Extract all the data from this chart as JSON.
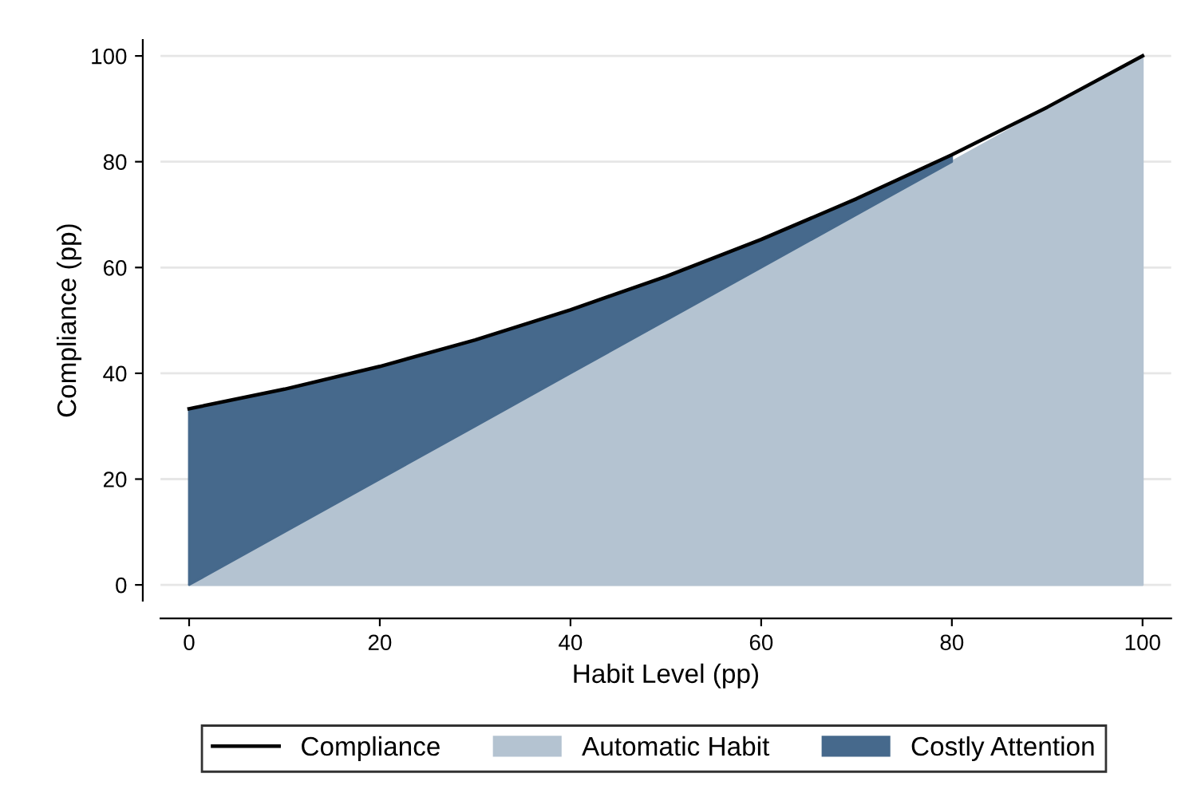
{
  "chart_data": {
    "type": "area",
    "stacked": true,
    "xlabel": "Habit Level (pp)",
    "ylabel": "Compliance (pp)",
    "x": [
      0,
      10,
      20,
      30,
      40,
      50,
      60,
      70,
      80,
      90,
      100
    ],
    "series": [
      {
        "name": "Automatic Habit",
        "color": "#b4c3d1",
        "values": [
          0,
          10,
          20,
          30,
          40,
          50,
          60,
          70,
          80,
          90,
          100
        ]
      },
      {
        "name": "Costly Attention",
        "color": "#46698c",
        "values": [
          33.3,
          27.0,
          21.3,
          16.3,
          12.0,
          8.3,
          5.3,
          3.0,
          1.3,
          null,
          null
        ]
      },
      {
        "name": "Compliance",
        "type": "line",
        "color": "#000000",
        "values": [
          33.3,
          37.0,
          41.3,
          46.3,
          52.0,
          58.3,
          65.3,
          73.0,
          81.3,
          90.3,
          100
        ]
      }
    ],
    "xlim": [
      -3,
      103
    ],
    "ylim": [
      -3,
      103
    ],
    "xticks": [
      0,
      20,
      40,
      60,
      80,
      100
    ],
    "yticks": [
      0,
      20,
      40,
      60,
      80,
      100
    ],
    "grid": "y",
    "legend": "bottom"
  }
}
